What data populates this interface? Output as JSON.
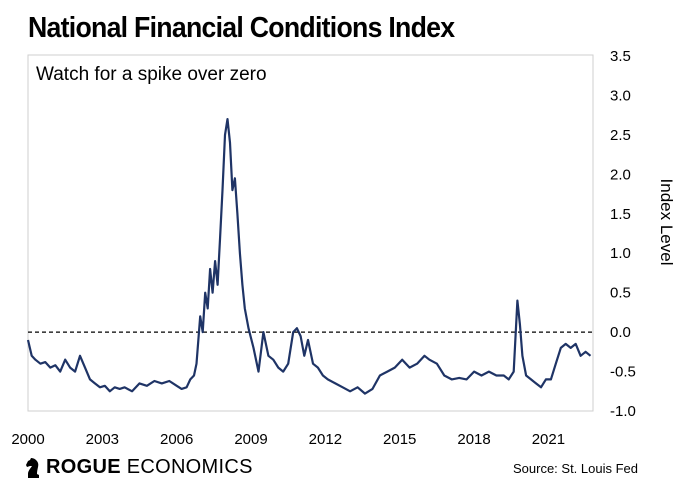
{
  "header": {
    "title": "National Financial Conditions Index",
    "subtitle": "Watch for a spike over zero"
  },
  "footer": {
    "brand_bold": "ROGUE",
    "brand_regular": " ECONOMICS",
    "source": "Source: St. Louis Fed"
  },
  "icons": {
    "logo": "knight-chess-piece-icon"
  },
  "colors": {
    "line": "#1f3466",
    "zero_line": "#000000"
  },
  "chart_data": {
    "type": "line",
    "title": "National Financial Conditions Index",
    "subtitle": "Watch for a spike over zero",
    "ylabel": "Index Level",
    "xlim": [
      2000,
      2022.8
    ],
    "ylim": [
      -1.0,
      3.5
    ],
    "x_ticks": [
      "2000",
      "2003",
      "2006",
      "2009",
      "2012",
      "2015",
      "2018",
      "2021"
    ],
    "x_tick_values": [
      2000,
      2003,
      2006,
      2009,
      2012,
      2015,
      2018,
      2021
    ],
    "y_ticks": [
      "3.5",
      "3.0",
      "2.5",
      "2.0",
      "1.5",
      "1.0",
      "0.5",
      "0.0",
      "-0.5",
      "-1.0"
    ],
    "y_tick_values": [
      3.5,
      3.0,
      2.5,
      2.0,
      1.5,
      1.0,
      0.5,
      0.0,
      -0.5,
      -1.0
    ],
    "y_axis_side": "right",
    "grid": false,
    "reference_line": {
      "y": 0.0,
      "style": "dashed"
    },
    "series": [
      {
        "x": [
          2000.0,
          2000.15,
          2000.3,
          2000.5,
          2000.7,
          2000.9,
          2001.1,
          2001.3,
          2001.5,
          2001.7,
          2001.9,
          2002.1,
          2002.3,
          2002.5,
          2002.7,
          2002.9,
          2003.1,
          2003.3,
          2003.5,
          2003.7,
          2003.9,
          2004.2,
          2004.5,
          2004.8,
          2005.1,
          2005.4,
          2005.7,
          2006.0,
          2006.2,
          2006.4,
          2006.55,
          2006.7,
          2006.8,
          2006.95,
          2007.05,
          2007.15,
          2007.25,
          2007.35,
          2007.45,
          2007.55,
          2007.65,
          2007.75,
          2007.85,
          2007.95,
          2008.05,
          2008.15,
          2008.25,
          2008.35,
          2008.45,
          2008.55,
          2008.65,
          2008.75,
          2008.9,
          2009.1,
          2009.3,
          2009.5,
          2009.7,
          2009.9,
          2010.1,
          2010.3,
          2010.5,
          2010.7,
          2010.85,
          2011.0,
          2011.15,
          2011.3,
          2011.5,
          2011.7,
          2011.9,
          2012.1,
          2012.4,
          2012.7,
          2013.0,
          2013.3,
          2013.6,
          2013.9,
          2014.2,
          2014.5,
          2014.8,
          2015.1,
          2015.4,
          2015.7,
          2016.0,
          2016.2,
          2016.5,
          2016.8,
          2017.1,
          2017.4,
          2017.7,
          2018.0,
          2018.3,
          2018.6,
          2018.9,
          2019.2,
          2019.4,
          2019.6,
          2019.75,
          2019.85,
          2019.95,
          2020.1,
          2020.3,
          2020.5,
          2020.7,
          2020.9,
          2021.1,
          2021.3,
          2021.5,
          2021.7,
          2021.9,
          2022.1,
          2022.3,
          2022.5,
          2022.7
        ],
        "values": [
          -0.1,
          -0.3,
          -0.35,
          -0.4,
          -0.38,
          -0.45,
          -0.42,
          -0.5,
          -0.35,
          -0.45,
          -0.5,
          -0.3,
          -0.45,
          -0.6,
          -0.65,
          -0.7,
          -0.68,
          -0.75,
          -0.7,
          -0.72,
          -0.7,
          -0.75,
          -0.65,
          -0.68,
          -0.62,
          -0.65,
          -0.62,
          -0.68,
          -0.72,
          -0.7,
          -0.6,
          -0.55,
          -0.4,
          0.2,
          0.0,
          0.5,
          0.3,
          0.8,
          0.5,
          0.9,
          0.6,
          1.2,
          1.8,
          2.5,
          2.7,
          2.4,
          1.8,
          1.95,
          1.5,
          1.0,
          0.6,
          0.3,
          0.05,
          -0.2,
          -0.5,
          0.0,
          -0.3,
          -0.35,
          -0.45,
          -0.5,
          -0.4,
          0.0,
          0.05,
          -0.05,
          -0.3,
          -0.1,
          -0.4,
          -0.45,
          -0.55,
          -0.6,
          -0.65,
          -0.7,
          -0.75,
          -0.7,
          -0.78,
          -0.72,
          -0.55,
          -0.5,
          -0.45,
          -0.35,
          -0.45,
          -0.4,
          -0.3,
          -0.35,
          -0.4,
          -0.55,
          -0.6,
          -0.58,
          -0.6,
          -0.5,
          -0.55,
          -0.5,
          -0.55,
          -0.55,
          -0.6,
          -0.5,
          0.4,
          0.1,
          -0.3,
          -0.55,
          -0.6,
          -0.65,
          -0.7,
          -0.6,
          -0.6,
          -0.4,
          -0.2,
          -0.15,
          -0.2,
          -0.15,
          -0.3,
          -0.25,
          -0.3
        ]
      }
    ]
  }
}
